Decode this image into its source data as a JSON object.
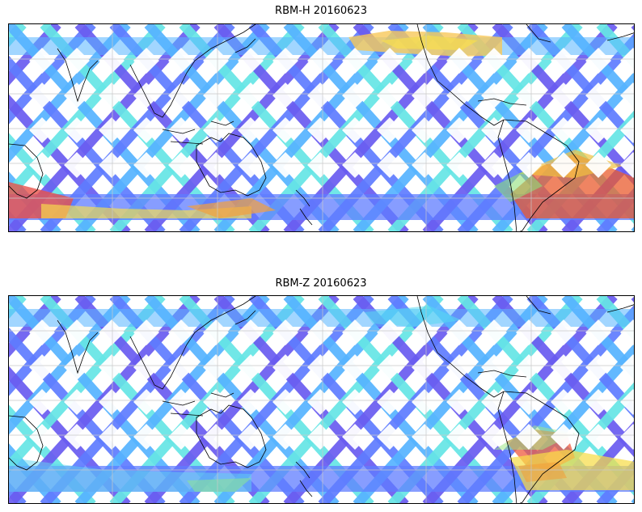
{
  "panels": [
    {
      "title": "RBM-H 20160623",
      "swath_colors": [
        "#6a5cf0",
        "#5f7cff",
        "#56b4ff",
        "#66e6e6"
      ],
      "hot_regions": [
        {
          "name": "south-atlantic-south-america",
          "colors": [
            "#f0533a",
            "#e95b2d",
            "#f2c240",
            "#8fe07a"
          ]
        },
        {
          "name": "southwest-indian-ocean",
          "colors": [
            "#e9534a",
            "#f3a03d",
            "#f9e04a"
          ]
        },
        {
          "name": "north-pacific-arc",
          "colors": [
            "#f8c85a",
            "#f7a855",
            "#fbe04a"
          ]
        }
      ]
    },
    {
      "title": "RBM-Z 20160623",
      "swath_colors": [
        "#6a5cf0",
        "#5f7cff",
        "#56b4ff",
        "#66e6e6"
      ],
      "hot_regions": [
        {
          "name": "south-atlantic-south-america",
          "colors": [
            "#ef5a3d",
            "#f2a03b",
            "#f7dd48",
            "#9ee888"
          ]
        },
        {
          "name": "southern-band",
          "colors": [
            "#5fd5f0",
            "#8ae29a"
          ]
        }
      ]
    }
  ],
  "colormap_note_colors": {
    "low": "#6a5cf0",
    "mid_low": "#5ab4ff",
    "mid": "#7be8a8",
    "mid_high": "#f4d44a",
    "high": "#e7503a"
  }
}
